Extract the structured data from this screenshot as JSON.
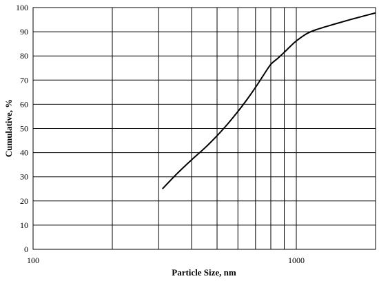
{
  "chart_data": {
    "type": "line",
    "title": "",
    "xlabel": "Particle Size, nm",
    "ylabel": "Cumulative, %",
    "xscale": "log",
    "xlim": [
      100,
      2000
    ],
    "ylim": [
      0,
      100
    ],
    "x_tick_labels": [
      "100",
      "1000"
    ],
    "y_ticks": [
      0,
      10,
      20,
      30,
      40,
      50,
      60,
      70,
      80,
      90,
      100
    ],
    "x_gridlines": [
      200,
      300,
      400,
      500,
      600,
      700,
      800,
      900,
      1000
    ],
    "y_grid": true,
    "legend": "none",
    "series": [
      {
        "x": [
          310,
          350,
          400,
          450,
          500,
          550,
          600,
          650,
          700,
          750,
          800,
          850,
          900,
          950,
          1000,
          1100,
          1200,
          1400,
          1600,
          1800,
          2000
        ],
        "y": [
          25,
          31,
          37,
          42,
          47,
          52,
          57,
          62,
          67,
          72,
          76.5,
          79,
          81.5,
          84,
          86.2,
          89.3,
          91,
          93.2,
          95,
          96.5,
          97.8
        ]
      }
    ]
  }
}
